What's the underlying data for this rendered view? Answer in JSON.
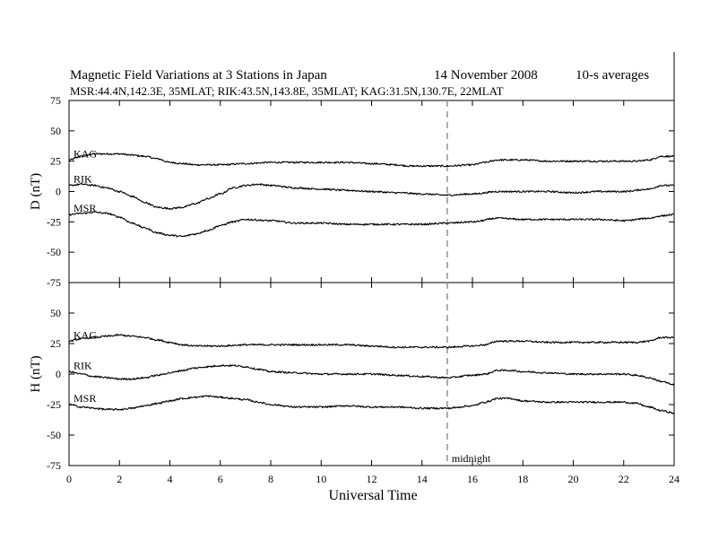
{
  "header": {
    "title": "Magnetic Field Variations at 3 Stations in Japan",
    "date": "14 November 2008",
    "averaging": "10-s averages",
    "stations_info": "MSR:44.4N,142.3E, 35MLAT;  RIK:43.5N,143.8E, 35MLAT;  KAG:31.5N,130.7E, 22MLAT"
  },
  "chart_data": [
    {
      "type": "line",
      "panel": "top",
      "ylabel": "D (nT)",
      "xlabel": "",
      "xlim": [
        0,
        24
      ],
      "ylim": [
        -75,
        75
      ],
      "x_ticks": [
        0,
        2,
        4,
        6,
        8,
        10,
        12,
        14,
        16,
        18,
        20,
        22,
        24
      ],
      "y_ticks": [
        75,
        50,
        25,
        0,
        -25,
        -50,
        -75
      ],
      "y_tick_labels": [
        "75",
        "50",
        "25",
        "0",
        "-25",
        "-50",
        "-75"
      ],
      "midnight_marker_x": 15,
      "series": [
        {
          "name": "KAG",
          "x": [
            0,
            0.5,
            1,
            1.5,
            2,
            2.5,
            3,
            3.5,
            4,
            4.5,
            5,
            6,
            7,
            8,
            9,
            10,
            11,
            12,
            13,
            13.5,
            14,
            15,
            16,
            16.5,
            17,
            18,
            19,
            20,
            21,
            22,
            22.5,
            23,
            23.5,
            24
          ],
          "values": [
            26,
            29,
            31,
            31,
            31,
            30,
            29,
            27,
            24,
            23,
            22,
            22,
            23,
            24,
            24,
            24,
            24,
            23,
            22,
            21,
            21,
            21,
            22,
            24,
            26,
            26,
            25,
            25,
            25,
            25,
            25,
            26,
            29,
            29
          ]
        },
        {
          "name": "RIK",
          "x": [
            0,
            0.5,
            1,
            1.5,
            2,
            2.5,
            3,
            3.5,
            4,
            4.5,
            5,
            5.5,
            6,
            6.5,
            7,
            7.5,
            8,
            9,
            10,
            11,
            12,
            13,
            14,
            15,
            16,
            17,
            18,
            19,
            20,
            21,
            22,
            23,
            23.5,
            24
          ],
          "values": [
            5,
            6,
            5,
            3,
            0,
            -4,
            -9,
            -13,
            -14,
            -13,
            -10,
            -6,
            -2,
            3,
            5,
            6,
            5,
            3,
            2,
            1,
            0,
            -1,
            -2,
            -3,
            -2,
            0,
            0,
            0,
            -1,
            0,
            0,
            2,
            5,
            5
          ]
        },
        {
          "name": "MSR",
          "x": [
            0,
            0.5,
            1,
            1.5,
            2,
            2.5,
            3,
            3.5,
            4,
            4.5,
            5,
            5.5,
            6,
            6.5,
            7,
            8,
            9,
            10,
            11,
            12,
            13,
            14,
            15,
            16,
            17,
            18,
            19,
            20,
            21,
            22,
            23,
            23.5,
            24
          ],
          "values": [
            -19,
            -18,
            -17,
            -18,
            -21,
            -26,
            -30,
            -34,
            -36,
            -37,
            -35,
            -32,
            -28,
            -25,
            -23,
            -24,
            -26,
            -26,
            -27,
            -27,
            -27,
            -27,
            -26,
            -25,
            -22,
            -23,
            -23,
            -23,
            -23,
            -24,
            -22,
            -20,
            -19
          ]
        }
      ]
    },
    {
      "type": "line",
      "panel": "bottom",
      "ylabel": "H (nT)",
      "xlabel": "Universal Time",
      "xlim": [
        0,
        24
      ],
      "ylim": [
        -75,
        75
      ],
      "x_ticks": [
        0,
        2,
        4,
        6,
        8,
        10,
        12,
        14,
        16,
        18,
        20,
        22,
        24
      ],
      "y_ticks": [
        75,
        50,
        25,
        0,
        -25,
        -50,
        -75
      ],
      "y_tick_labels": [
        "",
        "50",
        "25",
        "0",
        "-25",
        "-50",
        "-75"
      ],
      "x_tick_labels": [
        "0",
        "2",
        "4",
        "6",
        "8",
        "10",
        "12",
        "14",
        "16",
        "18",
        "20",
        "22",
        "24"
      ],
      "midnight_marker_x": 15,
      "midnight_label": "midnight",
      "series": [
        {
          "name": "KAG",
          "x": [
            0,
            0.5,
            1,
            1.5,
            2,
            2.5,
            3,
            3.5,
            4,
            4.5,
            5,
            6,
            7,
            8,
            9,
            10,
            11,
            12,
            13,
            14,
            15,
            16,
            16.5,
            17,
            17.5,
            18,
            19,
            20,
            21,
            22,
            22.5,
            23,
            23.5,
            24
          ],
          "values": [
            27,
            29,
            30,
            31,
            32,
            31,
            30,
            28,
            26,
            24,
            23,
            23,
            24,
            24,
            24,
            24,
            24,
            23,
            22,
            22,
            22,
            23,
            24,
            27,
            27,
            27,
            26,
            26,
            26,
            26,
            26,
            27,
            30,
            30
          ]
        },
        {
          "name": "RIK",
          "x": [
            0,
            0.5,
            1,
            1.5,
            2,
            2.5,
            3,
            3.5,
            4,
            4.5,
            5,
            5.5,
            6,
            6.5,
            7,
            7.5,
            8,
            9,
            10,
            11,
            12,
            13,
            14,
            15,
            16,
            16.5,
            17,
            17.5,
            18,
            19,
            20,
            21,
            22,
            22.5,
            23,
            23.5,
            24
          ],
          "values": [
            2,
            0,
            -2,
            -3,
            -4,
            -4,
            -3,
            -1,
            1,
            3,
            5,
            6,
            7,
            7,
            6,
            4,
            2,
            1,
            0,
            0,
            0,
            -1,
            -2,
            -3,
            -1,
            0,
            3,
            3,
            2,
            1,
            0,
            0,
            0,
            -1,
            -3,
            -6,
            -9
          ]
        },
        {
          "name": "MSR",
          "x": [
            0,
            0.5,
            1,
            1.5,
            2,
            2.5,
            3,
            3.5,
            4,
            4.5,
            5,
            5.5,
            6,
            6.5,
            7,
            7.5,
            8,
            9,
            10,
            11,
            12,
            13,
            14,
            15,
            16,
            16.5,
            17,
            17.5,
            18,
            19,
            20,
            21,
            22,
            22.5,
            23,
            23.5,
            24
          ],
          "values": [
            -25,
            -27,
            -28,
            -29,
            -29,
            -28,
            -26,
            -24,
            -22,
            -20,
            -19,
            -18,
            -19,
            -20,
            -21,
            -23,
            -25,
            -27,
            -27,
            -26,
            -27,
            -27,
            -28,
            -28,
            -26,
            -23,
            -20,
            -20,
            -22,
            -23,
            -23,
            -23,
            -23,
            -24,
            -27,
            -30,
            -32
          ]
        }
      ]
    }
  ]
}
